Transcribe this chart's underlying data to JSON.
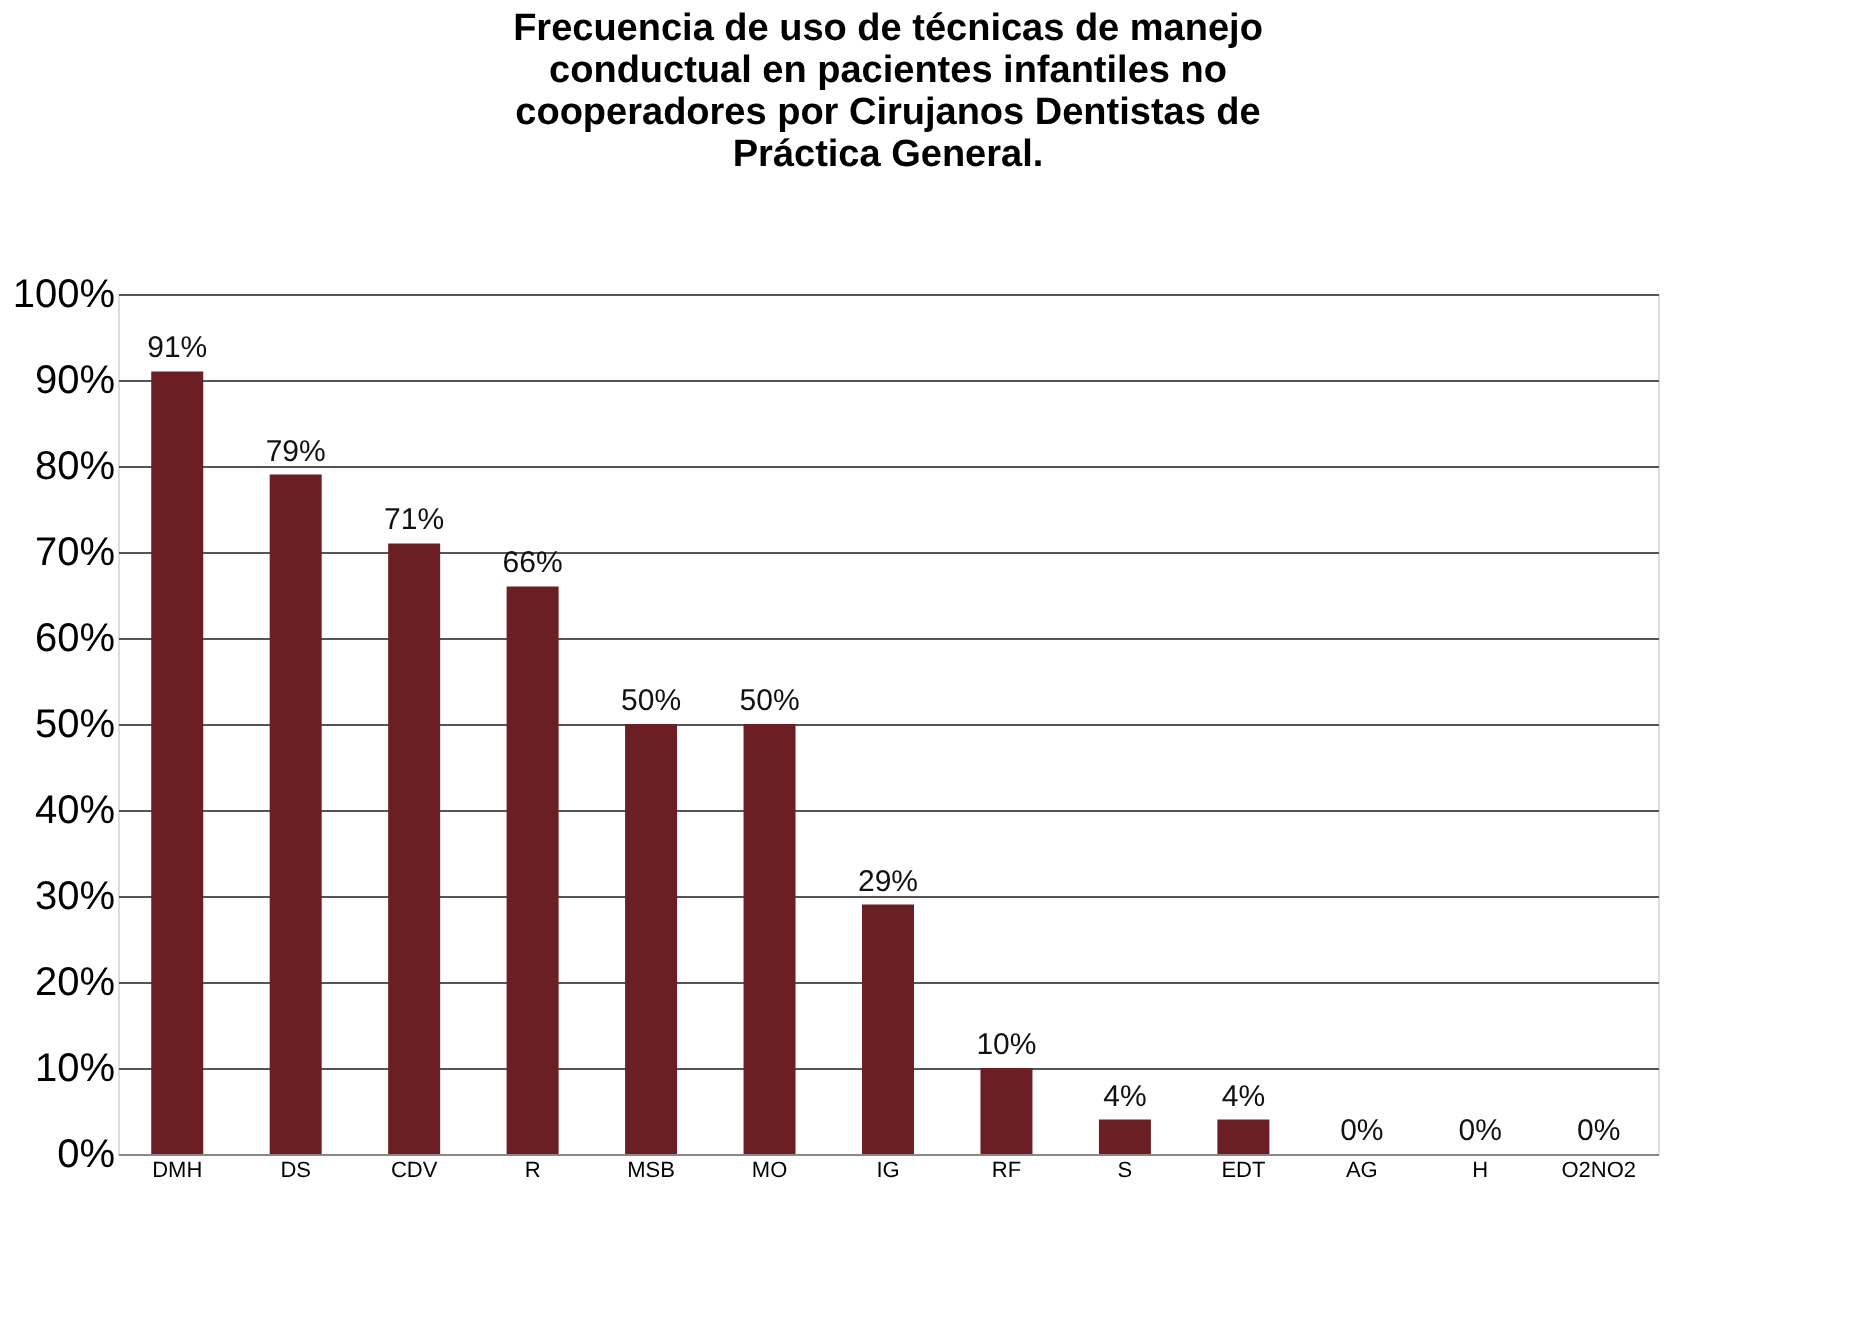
{
  "chart_data": {
    "type": "bar",
    "title": "Frecuencia de uso de técnicas de manejo\nconductual en pacientes infantiles no\ncooperadores por Cirujanos Dentistas de\nPráctica General.",
    "categories": [
      "DMH",
      "DS",
      "CDV",
      "R",
      "MSB",
      "MO",
      "IG",
      "RF",
      "S",
      "EDT",
      "AG",
      "H",
      "O2NO2"
    ],
    "values": [
      91,
      79,
      71,
      66,
      50,
      50,
      29,
      10,
      4,
      4,
      0,
      0,
      0
    ],
    "value_labels": [
      "91%",
      "79%",
      "71%",
      "66%",
      "50%",
      "50%",
      "29%",
      "10%",
      "4%",
      "4%",
      "0%",
      "0%",
      "0%"
    ],
    "color": "#6b1f24",
    "grid": "y",
    "ylim": [
      0,
      100
    ],
    "yticks": [
      {
        "value": 0,
        "label": "0%"
      },
      {
        "value": 10,
        "label": "10%"
      },
      {
        "value": 20,
        "label": "20%"
      },
      {
        "value": 30,
        "label": "30%"
      },
      {
        "value": 40,
        "label": "40%"
      },
      {
        "value": 50,
        "label": "50%"
      },
      {
        "value": 60,
        "label": "60%"
      },
      {
        "value": 70,
        "label": "70%"
      },
      {
        "value": 80,
        "label": "80%"
      },
      {
        "value": 90,
        "label": "90%"
      },
      {
        "value": 100,
        "label": "100%"
      }
    ]
  }
}
